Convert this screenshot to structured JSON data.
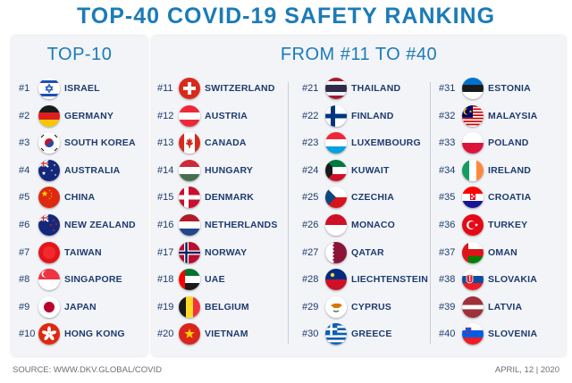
{
  "title": "TOP-40 COVID-19 SAFETY RANKING",
  "left_heading": "TOP-10",
  "right_heading": "FROM #11 TO #40",
  "source": "SOURCE: WWW.DKV.GLOBAL/COVID",
  "date": "APRIL, 12 | 2020",
  "rankings": [
    {
      "rank": "#1",
      "country": "ISRAEL",
      "flag": "israel-flag"
    },
    {
      "rank": "#2",
      "country": "GERMANY",
      "flag": "germany-flag"
    },
    {
      "rank": "#3",
      "country": "SOUTH KOREA",
      "flag": "south-korea-flag"
    },
    {
      "rank": "#4",
      "country": "AUSTRALIA",
      "flag": "australia-flag"
    },
    {
      "rank": "#5",
      "country": "CHINA",
      "flag": "china-flag"
    },
    {
      "rank": "#6",
      "country": "NEW ZEALAND",
      "flag": "new-zealand-flag"
    },
    {
      "rank": "#7",
      "country": "TAIWAN",
      "flag": "taiwan-flag"
    },
    {
      "rank": "#8",
      "country": "SINGAPORE",
      "flag": "singapore-flag"
    },
    {
      "rank": "#9",
      "country": "JAPAN",
      "flag": "japan-flag"
    },
    {
      "rank": "#10",
      "country": "HONG KONG",
      "flag": "hong-kong-flag"
    },
    {
      "rank": "#11",
      "country": "SWITZERLAND",
      "flag": "switzerland-flag"
    },
    {
      "rank": "#12",
      "country": "AUSTRIA",
      "flag": "austria-flag"
    },
    {
      "rank": "#13",
      "country": "CANADA",
      "flag": "canada-flag"
    },
    {
      "rank": "#14",
      "country": "HUNGARY",
      "flag": "hungary-flag"
    },
    {
      "rank": "#15",
      "country": "DENMARK",
      "flag": "denmark-flag"
    },
    {
      "rank": "#16",
      "country": "NETHERLANDS",
      "flag": "netherlands-flag"
    },
    {
      "rank": "#17",
      "country": "NORWAY",
      "flag": "norway-flag"
    },
    {
      "rank": "#18",
      "country": "UAE",
      "flag": "uae-flag"
    },
    {
      "rank": "#19",
      "country": "BELGIUM",
      "flag": "belgium-flag"
    },
    {
      "rank": "#20",
      "country": "VIETNAM",
      "flag": "vietnam-flag"
    },
    {
      "rank": "#21",
      "country": "THAILAND",
      "flag": "thailand-flag"
    },
    {
      "rank": "#22",
      "country": "FINLAND",
      "flag": "finland-flag"
    },
    {
      "rank": "#23",
      "country": "LUXEMBOURG",
      "flag": "luxembourg-flag"
    },
    {
      "rank": "#24",
      "country": "KUWAIT",
      "flag": "kuwait-flag"
    },
    {
      "rank": "#25",
      "country": "CZECHIA",
      "flag": "czechia-flag"
    },
    {
      "rank": "#26",
      "country": "MONACO",
      "flag": "monaco-flag"
    },
    {
      "rank": "#27",
      "country": "QATAR",
      "flag": "qatar-flag"
    },
    {
      "rank": "#28",
      "country": "LIECHTENSTEIN",
      "flag": "liechtenstein-flag"
    },
    {
      "rank": "#29",
      "country": "CYPRUS",
      "flag": "cyprus-flag"
    },
    {
      "rank": "#30",
      "country": "GREECE",
      "flag": "greece-flag"
    },
    {
      "rank": "#31",
      "country": "ESTONIA",
      "flag": "estonia-flag"
    },
    {
      "rank": "#32",
      "country": "MALAYSIA",
      "flag": "malaysia-flag"
    },
    {
      "rank": "#33",
      "country": "POLAND",
      "flag": "poland-flag"
    },
    {
      "rank": "#34",
      "country": "IRELAND",
      "flag": "ireland-flag"
    },
    {
      "rank": "#35",
      "country": "CROATIA",
      "flag": "croatia-flag"
    },
    {
      "rank": "#36",
      "country": "TURKEY",
      "flag": "turkey-flag"
    },
    {
      "rank": "#37",
      "country": "OMAN",
      "flag": "oman-flag"
    },
    {
      "rank": "#38",
      "country": "SLOVAKIA",
      "flag": "slovakia-flag"
    },
    {
      "rank": "#39",
      "country": "LATVIA",
      "flag": "latvia-flag"
    },
    {
      "rank": "#40",
      "country": "SLOVENIA",
      "flag": "slovenia-flag"
    }
  ]
}
